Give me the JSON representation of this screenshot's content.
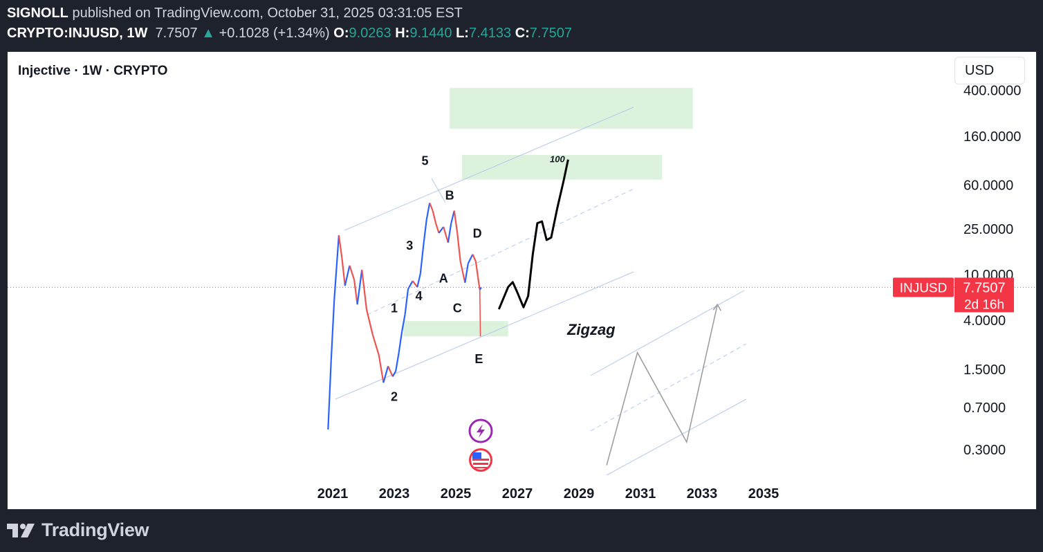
{
  "header": {
    "publisher": "SIGNOLL",
    "published_text": "published on TradingView.com, October 31, 2025 03:31:05 EST",
    "symbol": "CRYPTO:INJUSD, 1W",
    "last": "7.7507",
    "change": "+0.1028 (+1.34%)",
    "o_label": "O:",
    "o": "9.0263",
    "h_label": "H:",
    "h": "9.1440",
    "l_label": "L:",
    "l": "7.4133",
    "c_label": "C:",
    "c": "7.7507"
  },
  "legend": "Injective · 1W · CRYPTO",
  "currency": "USD",
  "price_tag": {
    "symbol": "INJUSD",
    "price": "7.7507",
    "countdown": "2d 16h"
  },
  "footer": {
    "brand": "TradingView"
  },
  "colors": {
    "up": "#26a69a",
    "down": "#ef5350",
    "price_tag": "#f23645",
    "box": "#ddf2dc",
    "channel": "#b4c7f0"
  },
  "icons": [
    "lightning-icon",
    "us-flag-icon",
    "tradingview-logo-icon"
  ],
  "chart_data": {
    "type": "candlestick",
    "symbol": "INJUSD",
    "timeframe": "1W",
    "y_scale": "log",
    "y_ticks": [
      400,
      160,
      60,
      25,
      10,
      4,
      1.5,
      0.7,
      0.3
    ],
    "y_tick_labels": [
      "400.0000",
      "160.0000",
      "60.0000",
      "25.0000",
      "10.0000",
      "4.0000",
      "1.5000",
      "0.7000",
      "0.3000"
    ],
    "x_ticks": [
      2021,
      2023,
      2025,
      2027,
      2029,
      2031,
      2033,
      2035
    ],
    "x_tick_labels": [
      "2021",
      "2023",
      "2025",
      "2027",
      "2029",
      "2031",
      "2033",
      "2035"
    ],
    "price_path": [
      [
        2020.85,
        0.45
      ],
      [
        2020.95,
        1.8
      ],
      [
        2021.05,
        6
      ],
      [
        2021.2,
        22
      ],
      [
        2021.3,
        14
      ],
      [
        2021.4,
        8
      ],
      [
        2021.55,
        12
      ],
      [
        2021.7,
        9
      ],
      [
        2021.8,
        5.5
      ],
      [
        2021.95,
        11
      ],
      [
        2022.1,
        5
      ],
      [
        2022.3,
        3
      ],
      [
        2022.5,
        2
      ],
      [
        2022.65,
        1.15
      ],
      [
        2022.8,
        1.6
      ],
      [
        2022.95,
        1.3
      ],
      [
        2023.05,
        1.45
      ],
      [
        2023.15,
        2.1
      ],
      [
        2023.25,
        3.2
      ],
      [
        2023.35,
        4.5
      ],
      [
        2023.45,
        7.5
      ],
      [
        2023.6,
        8.8
      ],
      [
        2023.75,
        7.8
      ],
      [
        2023.85,
        10.2
      ],
      [
        2023.95,
        18
      ],
      [
        2024.05,
        30
      ],
      [
        2024.15,
        42
      ],
      [
        2024.25,
        36
      ],
      [
        2024.35,
        28
      ],
      [
        2024.45,
        23
      ],
      [
        2024.6,
        26
      ],
      [
        2024.75,
        19
      ],
      [
        2024.85,
        28
      ],
      [
        2024.95,
        36
      ],
      [
        2025.05,
        23
      ],
      [
        2025.15,
        13
      ],
      [
        2025.3,
        8.5
      ],
      [
        2025.4,
        12.5
      ],
      [
        2025.55,
        15
      ],
      [
        2025.65,
        13
      ],
      [
        2025.72,
        9.5
      ],
      [
        2025.78,
        7.4
      ],
      [
        2025.83,
        7.75
      ]
    ],
    "wave_labels": [
      {
        "label": "1",
        "x": 2023.0,
        "y": 4.7
      },
      {
        "label": "2",
        "x": 2023.0,
        "y": 0.8
      },
      {
        "label": "3",
        "x": 2023.5,
        "y": 16.5
      },
      {
        "label": "4",
        "x": 2023.8,
        "y": 6.0
      },
      {
        "label": "5",
        "x": 2024.0,
        "y": 90
      },
      {
        "label": "A",
        "x": 2024.6,
        "y": 8.5
      },
      {
        "label": "B",
        "x": 2024.8,
        "y": 45
      },
      {
        "label": "C",
        "x": 2025.05,
        "y": 4.7
      },
      {
        "label": "D",
        "x": 2025.7,
        "y": 21
      },
      {
        "label": "E",
        "x": 2025.75,
        "y": 1.7
      }
    ],
    "annotations": [
      {
        "text": "Zigzag",
        "x": 2029.4,
        "y": 3.0
      },
      {
        "text": "100",
        "x": 2028.3,
        "y": 95
      }
    ],
    "target_zones": [
      {
        "x0": 2024.8,
        "x1": 2032.7,
        "y0": 185,
        "y1": 420
      },
      {
        "x0": 2025.2,
        "x1": 2031.7,
        "y0": 67,
        "y1": 110
      },
      {
        "x0": 2023.3,
        "x1": 2026.7,
        "y0": 2.9,
        "y1": 3.95
      }
    ],
    "projection_path": [
      [
        2026.4,
        5.0
      ],
      [
        2026.7,
        7.8
      ],
      [
        2026.85,
        8.6
      ],
      [
        2027.0,
        7.0
      ],
      [
        2027.2,
        5.2
      ],
      [
        2027.35,
        6.5
      ],
      [
        2027.5,
        15
      ],
      [
        2027.65,
        28
      ],
      [
        2027.8,
        29
      ],
      [
        2027.95,
        20
      ],
      [
        2028.1,
        21
      ],
      [
        2028.3,
        38
      ],
      [
        2028.5,
        65
      ],
      [
        2028.65,
        100
      ]
    ],
    "zigzag_path": [
      [
        2029.9,
        0.22
      ],
      [
        2030.9,
        2.1
      ],
      [
        2032.5,
        0.35
      ],
      [
        2033.5,
        5.5
      ]
    ]
  }
}
